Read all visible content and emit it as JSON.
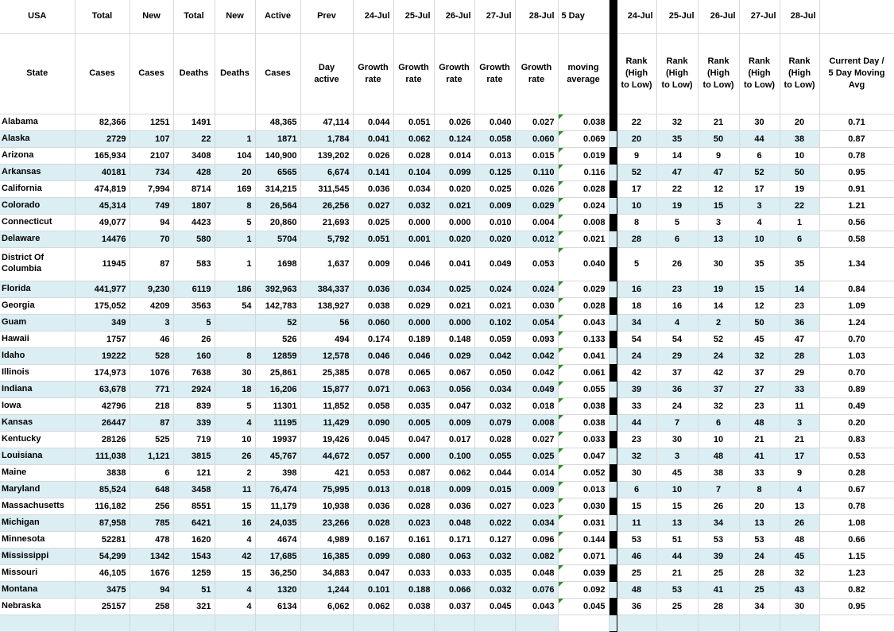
{
  "colors": {
    "stripe": "#DAEEF3",
    "grid": "#D8D8D8",
    "divider": "#000000",
    "error_indicator_green": "#2E8B2E",
    "text": "#000000"
  },
  "columns": [
    {
      "key": "state",
      "h1": "USA",
      "h2": "State"
    },
    {
      "key": "total_cases",
      "h1": "Total",
      "h2": "Cases"
    },
    {
      "key": "new_cases",
      "h1": "New",
      "h2": "Cases"
    },
    {
      "key": "total_deaths",
      "h1": "Total",
      "h2": "Deaths"
    },
    {
      "key": "new_deaths",
      "h1": "New",
      "h2": "Deaths"
    },
    {
      "key": "active_cases",
      "h1": "Active",
      "h2": "Cases"
    },
    {
      "key": "prev_day_active",
      "h1": "Prev",
      "h2": "Day\nactive"
    },
    {
      "key": "growth_24jul",
      "h1": "24-Jul",
      "h2": "Growth\nrate"
    },
    {
      "key": "growth_25jul",
      "h1": "25-Jul",
      "h2": "Growth\nrate"
    },
    {
      "key": "growth_26jul",
      "h1": "26-Jul",
      "h2": "Growth\nrate"
    },
    {
      "key": "growth_27jul",
      "h1": "27-Jul",
      "h2": "Growth\nrate"
    },
    {
      "key": "growth_28jul",
      "h1": "28-Jul",
      "h2": "Growth\nrate"
    },
    {
      "key": "moving_avg_5day",
      "h1": "5 Day",
      "h2": "moving\naverage"
    },
    {
      "key": "rank_24jul",
      "h1": "24-Jul",
      "h2": "Rank\n(High\nto Low)"
    },
    {
      "key": "rank_25jul",
      "h1": "25-Jul",
      "h2": "Rank\n(High\nto Low)"
    },
    {
      "key": "rank_26jul",
      "h1": "26-Jul",
      "h2": "Rank\n(High\nto Low)"
    },
    {
      "key": "rank_27jul",
      "h1": "27-Jul",
      "h2": "Rank\n(High\nto Low)"
    },
    {
      "key": "rank_28jul",
      "h1": "28-Jul",
      "h2": "Rank\n(High\nto Low)"
    },
    {
      "key": "ratio",
      "h1": "",
      "h2": "Current Day /\n5 Day Moving\nAvg"
    }
  ],
  "rows": [
    [
      "Alabama",
      "82,366",
      "1251",
      "1491",
      "",
      "48,365",
      "47,114",
      "0.044",
      "0.051",
      "0.026",
      "0.040",
      "0.027",
      "0.038",
      "22",
      "32",
      "21",
      "30",
      "20",
      "0.71"
    ],
    [
      "Alaska",
      "2729",
      "107",
      "22",
      "1",
      "1871",
      "1,784",
      "0.041",
      "0.062",
      "0.124",
      "0.058",
      "0.060",
      "0.069",
      "20",
      "35",
      "50",
      "44",
      "38",
      "0.87"
    ],
    [
      "Arizona",
      "165,934",
      "2107",
      "3408",
      "104",
      "140,900",
      "139,202",
      "0.026",
      "0.028",
      "0.014",
      "0.013",
      "0.015",
      "0.019",
      "9",
      "14",
      "9",
      "6",
      "10",
      "0.78"
    ],
    [
      "Arkansas",
      "40181",
      "734",
      "428",
      "20",
      "6565",
      "6,674",
      "0.141",
      "0.104",
      "0.099",
      "0.125",
      "0.110",
      "0.116",
      "52",
      "47",
      "47",
      "52",
      "50",
      "0.95"
    ],
    [
      "California",
      "474,819",
      "7,994",
      "8714",
      "169",
      "314,215",
      "311,545",
      "0.036",
      "0.034",
      "0.020",
      "0.025",
      "0.026",
      "0.028",
      "17",
      "22",
      "12",
      "17",
      "19",
      "0.91"
    ],
    [
      "Colorado",
      "45,314",
      "749",
      "1807",
      "8",
      "26,564",
      "26,256",
      "0.027",
      "0.032",
      "0.021",
      "0.009",
      "0.029",
      "0.024",
      "10",
      "19",
      "15",
      "3",
      "22",
      "1.21"
    ],
    [
      "Connecticut",
      "49,077",
      "94",
      "4423",
      "5",
      "20,860",
      "21,693",
      "0.025",
      "0.000",
      "0.000",
      "0.010",
      "0.004",
      "0.008",
      "8",
      "5",
      "3",
      "4",
      "1",
      "0.56"
    ],
    [
      "Delaware",
      "14476",
      "70",
      "580",
      "1",
      "5704",
      "5,792",
      "0.051",
      "0.001",
      "0.020",
      "0.020",
      "0.012",
      "0.021",
      "28",
      "6",
      "13",
      "10",
      "6",
      "0.58"
    ],
    [
      "District Of Columbia",
      "11945",
      "87",
      "583",
      "1",
      "1698",
      "1,637",
      "0.009",
      "0.046",
      "0.041",
      "0.049",
      "0.053",
      "0.040",
      "5",
      "26",
      "30",
      "35",
      "35",
      "1.34"
    ],
    [
      "Florida",
      "441,977",
      "9,230",
      "6119",
      "186",
      "392,963",
      "384,337",
      "0.036",
      "0.034",
      "0.025",
      "0.024",
      "0.024",
      "0.029",
      "16",
      "23",
      "19",
      "15",
      "14",
      "0.84"
    ],
    [
      "Georgia",
      "175,052",
      "4209",
      "3563",
      "54",
      "142,783",
      "138,927",
      "0.038",
      "0.029",
      "0.021",
      "0.021",
      "0.030",
      "0.028",
      "18",
      "16",
      "14",
      "12",
      "23",
      "1.09"
    ],
    [
      "Guam",
      "349",
      "3",
      "5",
      "",
      "52",
      "56",
      "0.060",
      "0.000",
      "0.000",
      "0.102",
      "0.054",
      "0.043",
      "34",
      "4",
      "2",
      "50",
      "36",
      "1.24"
    ],
    [
      "Hawaii",
      "1757",
      "46",
      "26",
      "",
      "526",
      "494",
      "0.174",
      "0.189",
      "0.148",
      "0.059",
      "0.093",
      "0.133",
      "54",
      "54",
      "52",
      "45",
      "47",
      "0.70"
    ],
    [
      "Idaho",
      "19222",
      "528",
      "160",
      "8",
      "12859",
      "12,578",
      "0.046",
      "0.046",
      "0.029",
      "0.042",
      "0.042",
      "0.041",
      "24",
      "29",
      "24",
      "32",
      "28",
      "1.03"
    ],
    [
      "Illinois",
      "174,973",
      "1076",
      "7638",
      "30",
      "25,861",
      "25,385",
      "0.078",
      "0.065",
      "0.067",
      "0.050",
      "0.042",
      "0.061",
      "42",
      "37",
      "42",
      "37",
      "29",
      "0.70"
    ],
    [
      "Indiana",
      "63,678",
      "771",
      "2924",
      "18",
      "16,206",
      "15,877",
      "0.071",
      "0.063",
      "0.056",
      "0.034",
      "0.049",
      "0.055",
      "39",
      "36",
      "37",
      "27",
      "33",
      "0.89"
    ],
    [
      "Iowa",
      "42796",
      "218",
      "839",
      "5",
      "11301",
      "11,852",
      "0.058",
      "0.035",
      "0.047",
      "0.032",
      "0.018",
      "0.038",
      "33",
      "24",
      "32",
      "23",
      "11",
      "0.49"
    ],
    [
      "Kansas",
      "26447",
      "87",
      "339",
      "4",
      "11195",
      "11,429",
      "0.090",
      "0.005",
      "0.009",
      "0.079",
      "0.008",
      "0.038",
      "44",
      "7",
      "6",
      "48",
      "3",
      "0.20"
    ],
    [
      "Kentucky",
      "28126",
      "525",
      "719",
      "10",
      "19937",
      "19,426",
      "0.045",
      "0.047",
      "0.017",
      "0.028",
      "0.027",
      "0.033",
      "23",
      "30",
      "10",
      "21",
      "21",
      "0.83"
    ],
    [
      "Louisiana",
      "111,038",
      "1,121",
      "3815",
      "26",
      "45,767",
      "44,672",
      "0.057",
      "0.000",
      "0.100",
      "0.055",
      "0.025",
      "0.047",
      "32",
      "3",
      "48",
      "41",
      "17",
      "0.53"
    ],
    [
      "Maine",
      "3838",
      "6",
      "121",
      "2",
      "398",
      "421",
      "0.053",
      "0.087",
      "0.062",
      "0.044",
      "0.014",
      "0.052",
      "30",
      "45",
      "38",
      "33",
      "9",
      "0.28"
    ],
    [
      "Maryland",
      "85,524",
      "648",
      "3458",
      "11",
      "76,474",
      "75,995",
      "0.013",
      "0.018",
      "0.009",
      "0.015",
      "0.009",
      "0.013",
      "6",
      "10",
      "7",
      "8",
      "4",
      "0.67"
    ],
    [
      "Massachusetts",
      "116,182",
      "256",
      "8551",
      "15",
      "11,179",
      "10,938",
      "0.036",
      "0.028",
      "0.036",
      "0.027",
      "0.023",
      "0.030",
      "15",
      "15",
      "26",
      "20",
      "13",
      "0.78"
    ],
    [
      "Michigan",
      "87,958",
      "785",
      "6421",
      "16",
      "24,035",
      "23,266",
      "0.028",
      "0.023",
      "0.048",
      "0.022",
      "0.034",
      "0.031",
      "11",
      "13",
      "34",
      "13",
      "26",
      "1.08"
    ],
    [
      "Minnesota",
      "52281",
      "478",
      "1620",
      "4",
      "4674",
      "4,989",
      "0.167",
      "0.161",
      "0.171",
      "0.127",
      "0.096",
      "0.144",
      "53",
      "51",
      "53",
      "53",
      "48",
      "0.66"
    ],
    [
      "Mississippi",
      "54,299",
      "1342",
      "1543",
      "42",
      "17,685",
      "16,385",
      "0.099",
      "0.080",
      "0.063",
      "0.032",
      "0.082",
      "0.071",
      "46",
      "44",
      "39",
      "24",
      "45",
      "1.15"
    ],
    [
      "Missouri",
      "46,105",
      "1676",
      "1259",
      "15",
      "36,250",
      "34,883",
      "0.047",
      "0.033",
      "0.033",
      "0.035",
      "0.048",
      "0.039",
      "25",
      "21",
      "25",
      "28",
      "32",
      "1.23"
    ],
    [
      "Montana",
      "3475",
      "94",
      "51",
      "4",
      "1320",
      "1,244",
      "0.101",
      "0.188",
      "0.066",
      "0.032",
      "0.076",
      "0.092",
      "48",
      "53",
      "41",
      "25",
      "43",
      "0.82"
    ],
    [
      "Nebraska",
      "25157",
      "258",
      "321",
      "4",
      "6134",
      "6,062",
      "0.062",
      "0.038",
      "0.037",
      "0.045",
      "0.043",
      "0.045",
      "36",
      "25",
      "28",
      "34",
      "30",
      "0.95"
    ],
    [
      "",
      "",
      "",
      "",
      "",
      "",
      "",
      "",
      "",
      "",
      "",
      "",
      "",
      "",
      "",
      "",
      "",
      "",
      ""
    ]
  ]
}
